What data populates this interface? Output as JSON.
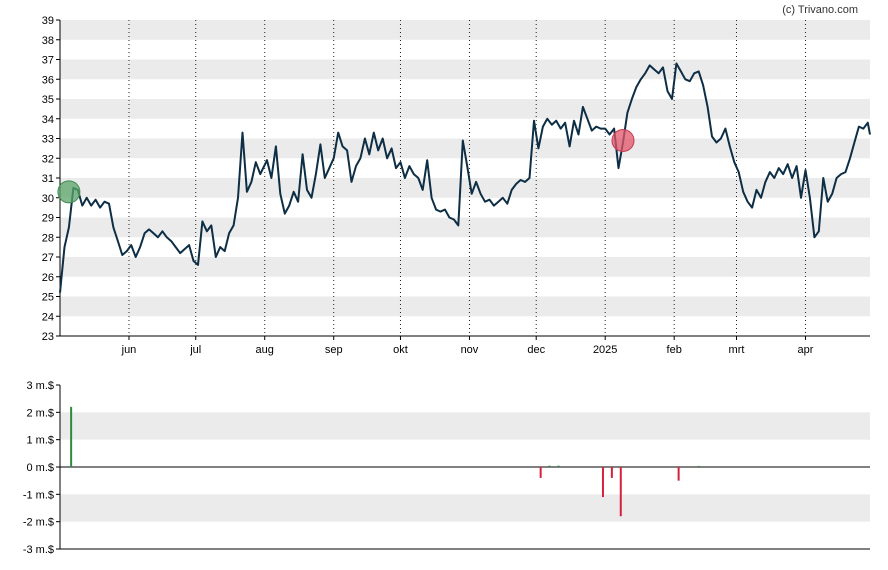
{
  "credit": "(c) Trivano.com",
  "colors": {
    "price_line": "#0d2e45",
    "band": "#ebebeb",
    "month_grid": "#222222",
    "axis": "#000000",
    "buy_marker": "#5aa469",
    "sell_marker": "#e0566a",
    "volume_buy": "#2e8b3e",
    "volume_sell": "#d6213c"
  },
  "chart_data": [
    {
      "type": "line",
      "title": "",
      "xlabel": "",
      "ylabel": "",
      "ylim": [
        23,
        39
      ],
      "y_ticks": [
        "23",
        "24",
        "25",
        "26",
        "27",
        "28",
        "29",
        "30",
        "31",
        "32",
        "33",
        "34",
        "35",
        "36",
        "37",
        "38",
        "39"
      ],
      "x_range": [
        "2024-05-01",
        "2025-04-30"
      ],
      "x_ticks": [
        {
          "date": "2024-06-01",
          "label": "jun"
        },
        {
          "date": "2024-07-01",
          "label": "jul"
        },
        {
          "date": "2024-08-01",
          "label": "aug"
        },
        {
          "date": "2024-09-01",
          "label": "sep"
        },
        {
          "date": "2024-10-01",
          "label": "okt"
        },
        {
          "date": "2024-11-01",
          "label": "nov"
        },
        {
          "date": "2024-12-01",
          "label": "dec"
        },
        {
          "date": "2025-01-01",
          "label": "2025"
        },
        {
          "date": "2025-02-01",
          "label": "feb"
        },
        {
          "date": "2025-03-01",
          "label": "mrt"
        },
        {
          "date": "2025-04-01",
          "label": "apr"
        }
      ],
      "grid": "alternating horizontal bands, dotted monthly vertical lines",
      "series": [
        {
          "points": [
            [
              "2024-05-01",
              25.2
            ],
            [
              "2024-05-03",
              27.5
            ],
            [
              "2024-05-05",
              28.5
            ],
            [
              "2024-05-07",
              30.5
            ],
            [
              "2024-05-09",
              30.4
            ],
            [
              "2024-05-11",
              29.6
            ],
            [
              "2024-05-13",
              30.0
            ],
            [
              "2024-05-15",
              29.6
            ],
            [
              "2024-05-17",
              29.9
            ],
            [
              "2024-05-19",
              29.5
            ],
            [
              "2024-05-21",
              29.8
            ],
            [
              "2024-05-23",
              29.7
            ],
            [
              "2024-05-25",
              28.5
            ],
            [
              "2024-05-27",
              27.8
            ],
            [
              "2024-05-29",
              27.1
            ],
            [
              "2024-05-31",
              27.3
            ],
            [
              "2024-06-02",
              27.6
            ],
            [
              "2024-06-04",
              27.0
            ],
            [
              "2024-06-06",
              27.5
            ],
            [
              "2024-06-08",
              28.2
            ],
            [
              "2024-06-10",
              28.4
            ],
            [
              "2024-06-12",
              28.2
            ],
            [
              "2024-06-14",
              28.0
            ],
            [
              "2024-06-16",
              28.3
            ],
            [
              "2024-06-18",
              28.0
            ],
            [
              "2024-06-20",
              27.8
            ],
            [
              "2024-06-22",
              27.5
            ],
            [
              "2024-06-24",
              27.2
            ],
            [
              "2024-06-26",
              27.4
            ],
            [
              "2024-06-28",
              27.6
            ],
            [
              "2024-06-30",
              26.8
            ],
            [
              "2024-07-02",
              26.6
            ],
            [
              "2024-07-04",
              28.8
            ],
            [
              "2024-07-06",
              28.3
            ],
            [
              "2024-07-08",
              28.6
            ],
            [
              "2024-07-10",
              27.0
            ],
            [
              "2024-07-12",
              27.5
            ],
            [
              "2024-07-14",
              27.3
            ],
            [
              "2024-07-16",
              28.2
            ],
            [
              "2024-07-18",
              28.6
            ],
            [
              "2024-07-20",
              30.0
            ],
            [
              "2024-07-22",
              33.3
            ],
            [
              "2024-07-24",
              30.3
            ],
            [
              "2024-07-26",
              30.8
            ],
            [
              "2024-07-28",
              31.8
            ],
            [
              "2024-07-30",
              31.2
            ],
            [
              "2024-08-02",
              31.9
            ],
            [
              "2024-08-04",
              31.0
            ],
            [
              "2024-08-06",
              32.6
            ],
            [
              "2024-08-08",
              30.2
            ],
            [
              "2024-08-10",
              29.2
            ],
            [
              "2024-08-12",
              29.6
            ],
            [
              "2024-08-14",
              30.3
            ],
            [
              "2024-08-16",
              29.8
            ],
            [
              "2024-08-18",
              32.2
            ],
            [
              "2024-08-20",
              30.4
            ],
            [
              "2024-08-22",
              30.0
            ],
            [
              "2024-08-24",
              31.2
            ],
            [
              "2024-08-26",
              32.7
            ],
            [
              "2024-08-28",
              31.0
            ],
            [
              "2024-08-30",
              31.5
            ],
            [
              "2024-09-01",
              32.0
            ],
            [
              "2024-09-03",
              33.3
            ],
            [
              "2024-09-05",
              32.6
            ],
            [
              "2024-09-07",
              32.4
            ],
            [
              "2024-09-09",
              30.8
            ],
            [
              "2024-09-11",
              31.6
            ],
            [
              "2024-09-13",
              32.0
            ],
            [
              "2024-09-15",
              33.0
            ],
            [
              "2024-09-17",
              32.2
            ],
            [
              "2024-09-19",
              33.3
            ],
            [
              "2024-09-21",
              32.4
            ],
            [
              "2024-09-23",
              33.0
            ],
            [
              "2024-09-25",
              32.0
            ],
            [
              "2024-09-27",
              32.5
            ],
            [
              "2024-09-29",
              31.5
            ],
            [
              "2024-10-01",
              31.8
            ],
            [
              "2024-10-03",
              31.0
            ],
            [
              "2024-10-05",
              31.6
            ],
            [
              "2024-10-07",
              31.2
            ],
            [
              "2024-10-09",
              31.0
            ],
            [
              "2024-10-11",
              30.4
            ],
            [
              "2024-10-13",
              31.9
            ],
            [
              "2024-10-15",
              30.0
            ],
            [
              "2024-10-17",
              29.4
            ],
            [
              "2024-10-19",
              29.3
            ],
            [
              "2024-10-21",
              29.4
            ],
            [
              "2024-10-23",
              29.0
            ],
            [
              "2024-10-25",
              28.9
            ],
            [
              "2024-10-27",
              28.6
            ],
            [
              "2024-10-29",
              32.9
            ],
            [
              "2024-10-31",
              31.6
            ],
            [
              "2024-11-02",
              30.2
            ],
            [
              "2024-11-04",
              30.8
            ],
            [
              "2024-11-06",
              30.2
            ],
            [
              "2024-11-08",
              29.8
            ],
            [
              "2024-11-10",
              29.9
            ],
            [
              "2024-11-12",
              29.6
            ],
            [
              "2024-11-14",
              29.8
            ],
            [
              "2024-11-16",
              30.0
            ],
            [
              "2024-11-18",
              29.7
            ],
            [
              "2024-11-20",
              30.4
            ],
            [
              "2024-11-22",
              30.7
            ],
            [
              "2024-11-24",
              30.9
            ],
            [
              "2024-11-26",
              30.8
            ],
            [
              "2024-11-28",
              31.0
            ],
            [
              "2024-11-30",
              33.9
            ],
            [
              "2024-12-02",
              32.5
            ],
            [
              "2024-12-04",
              33.6
            ],
            [
              "2024-12-06",
              34.0
            ],
            [
              "2024-12-08",
              33.7
            ],
            [
              "2024-12-10",
              33.9
            ],
            [
              "2024-12-12",
              33.5
            ],
            [
              "2024-12-14",
              33.8
            ],
            [
              "2024-12-16",
              32.6
            ],
            [
              "2024-12-18",
              33.9
            ],
            [
              "2024-12-20",
              33.2
            ],
            [
              "2024-12-22",
              34.6
            ],
            [
              "2024-12-24",
              34.0
            ],
            [
              "2024-12-26",
              33.4
            ],
            [
              "2024-12-28",
              33.6
            ],
            [
              "2024-12-30",
              33.5
            ],
            [
              "2025-01-01",
              33.5
            ],
            [
              "2025-01-03",
              33.2
            ],
            [
              "2025-01-05",
              33.5
            ],
            [
              "2025-01-07",
              31.5
            ],
            [
              "2025-01-09",
              32.8
            ],
            [
              "2025-01-11",
              34.3
            ],
            [
              "2025-01-13",
              35.0
            ],
            [
              "2025-01-15",
              35.6
            ],
            [
              "2025-01-17",
              36.0
            ],
            [
              "2025-01-19",
              36.3
            ],
            [
              "2025-01-21",
              36.7
            ],
            [
              "2025-01-23",
              36.5
            ],
            [
              "2025-01-25",
              36.3
            ],
            [
              "2025-01-27",
              36.6
            ],
            [
              "2025-01-29",
              35.4
            ],
            [
              "2025-01-31",
              35.0
            ],
            [
              "2025-02-02",
              36.8
            ],
            [
              "2025-02-04",
              36.4
            ],
            [
              "2025-02-06",
              36.0
            ],
            [
              "2025-02-08",
              35.9
            ],
            [
              "2025-02-10",
              36.3
            ],
            [
              "2025-02-12",
              36.4
            ],
            [
              "2025-02-14",
              35.7
            ],
            [
              "2025-02-16",
              34.6
            ],
            [
              "2025-02-18",
              33.1
            ],
            [
              "2025-02-20",
              32.8
            ],
            [
              "2025-02-22",
              33.0
            ],
            [
              "2025-02-24",
              33.5
            ],
            [
              "2025-02-26",
              32.6
            ],
            [
              "2025-02-28",
              31.8
            ],
            [
              "2025-03-02",
              31.3
            ],
            [
              "2025-03-04",
              30.3
            ],
            [
              "2025-03-06",
              29.8
            ],
            [
              "2025-03-08",
              29.5
            ],
            [
              "2025-03-10",
              30.4
            ],
            [
              "2025-03-12",
              30.0
            ],
            [
              "2025-03-14",
              30.8
            ],
            [
              "2025-03-16",
              31.3
            ],
            [
              "2025-03-18",
              31.0
            ],
            [
              "2025-03-20",
              31.5
            ],
            [
              "2025-03-22",
              31.2
            ],
            [
              "2025-03-24",
              31.7
            ],
            [
              "2025-03-26",
              31.0
            ],
            [
              "2025-03-28",
              31.6
            ],
            [
              "2025-03-30",
              30.0
            ],
            [
              "2025-04-01",
              31.4
            ],
            [
              "2025-04-03",
              30.0
            ],
            [
              "2025-04-05",
              28.0
            ],
            [
              "2025-04-07",
              28.3
            ],
            [
              "2025-04-09",
              31.0
            ],
            [
              "2025-04-11",
              29.8
            ],
            [
              "2025-04-13",
              30.2
            ],
            [
              "2025-04-15",
              31.0
            ],
            [
              "2025-04-17",
              31.2
            ],
            [
              "2025-04-19",
              31.3
            ],
            [
              "2025-04-21",
              32.0
            ],
            [
              "2025-04-23",
              32.8
            ],
            [
              "2025-04-25",
              33.6
            ],
            [
              "2025-04-27",
              33.5
            ],
            [
              "2025-04-29",
              33.8
            ],
            [
              "2025-04-30",
              33.2
            ]
          ]
        }
      ],
      "markers": [
        {
          "kind": "buy",
          "date": "2024-05-05",
          "value": 30.3
        },
        {
          "kind": "sell",
          "date": "2025-01-09",
          "value": 32.9
        }
      ]
    },
    {
      "type": "bar",
      "title": "",
      "xlabel": "",
      "ylabel": "",
      "unit": "m.$",
      "ylim": [
        -3,
        3
      ],
      "y_ticks": [
        "-3 m.$",
        "-2 m.$",
        "-1 m.$",
        "0 m.$",
        "1 m.$",
        "2 m.$",
        "3 m.$"
      ],
      "bars": [
        {
          "date": "2024-05-06",
          "value": 2.2
        },
        {
          "date": "2024-12-03",
          "value": -0.4
        },
        {
          "date": "2024-12-07",
          "value": 0.05
        },
        {
          "date": "2024-12-11",
          "value": 0.05
        },
        {
          "date": "2024-12-31",
          "value": -1.1
        },
        {
          "date": "2025-01-04",
          "value": -0.4
        },
        {
          "date": "2025-01-08",
          "value": -1.8
        },
        {
          "date": "2025-02-03",
          "value": -0.5
        },
        {
          "date": "2025-02-12",
          "value": 0.04
        }
      ]
    }
  ]
}
